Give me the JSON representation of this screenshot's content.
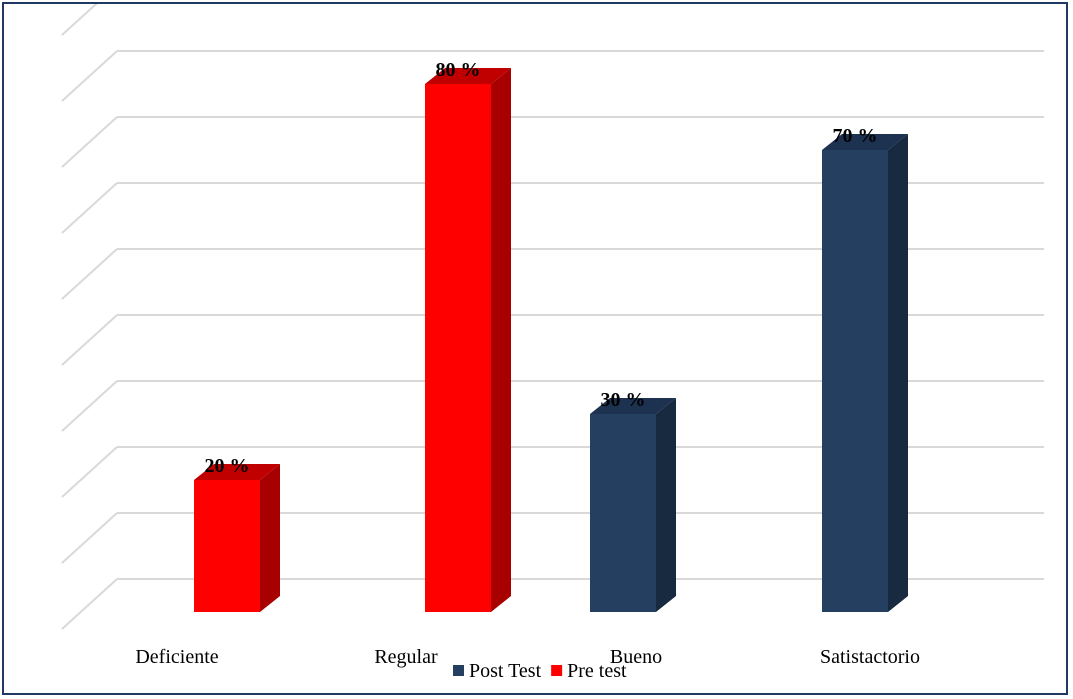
{
  "chart_data": {
    "type": "bar",
    "categories": [
      "Deficiente",
      "Regular",
      "Bueno",
      "Satistactorio"
    ],
    "series": [
      {
        "name": "Pre test",
        "color": "#ff0000",
        "side_color": "#a80000",
        "top_color": "#c00000",
        "values": [
          20,
          80,
          null,
          null
        ]
      },
      {
        "name": "Post Test",
        "color": "#243f60",
        "side_color": "#172a40",
        "top_color": "#1c3250",
        "values": [
          null,
          null,
          30,
          70
        ]
      }
    ],
    "data_labels": [
      "20 %",
      "80 %",
      "30 %",
      "70 %"
    ],
    "ylim": [
      0,
      80
    ],
    "grid": true,
    "legend_position": "bottom",
    "legend": [
      {
        "label": "Post Test",
        "color": "#243f60"
      },
      {
        "label": "Pre test",
        "color": "#ff0000"
      }
    ]
  }
}
